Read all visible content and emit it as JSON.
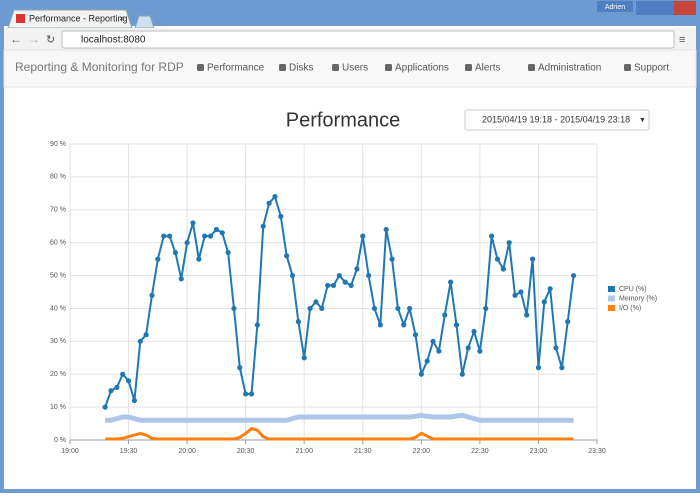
{
  "browser": {
    "tab_title": "Performance - Reporting",
    "user": "Adrien",
    "address": "localhost:8080"
  },
  "navbar": {
    "brand": "Reporting & Monitoring for RDP",
    "items": [
      "Performance",
      "Disks",
      "Users",
      "Applications",
      "Alerts",
      "Administration",
      "Support"
    ]
  },
  "date_range": "2015/04/19 19:18 - 2015/04/19 23:18",
  "chart_data": {
    "type": "line",
    "title": "Performance",
    "x": [
      "19:18",
      "19:21",
      "19:24",
      "19:27",
      "19:30",
      "19:33",
      "19:36",
      "19:39",
      "19:42",
      "19:45",
      "19:48",
      "19:51",
      "19:54",
      "19:57",
      "20:00",
      "20:03",
      "20:06",
      "20:09",
      "20:12",
      "20:15",
      "20:18",
      "20:21",
      "20:24",
      "20:27",
      "20:30",
      "20:33",
      "20:36",
      "20:39",
      "20:42",
      "20:45",
      "20:48",
      "20:51",
      "20:54",
      "20:57",
      "21:00",
      "21:03",
      "21:06",
      "21:09",
      "21:12",
      "21:15",
      "21:18",
      "21:21",
      "21:24",
      "21:27",
      "21:30",
      "21:33",
      "21:36",
      "21:39",
      "21:42",
      "21:45",
      "21:48",
      "21:51",
      "21:54",
      "21:57",
      "22:00",
      "22:03",
      "22:06",
      "22:09",
      "22:12",
      "22:15",
      "22:18",
      "22:21",
      "22:24",
      "22:27",
      "22:30",
      "22:33",
      "22:36",
      "22:39",
      "22:42",
      "22:45",
      "22:48",
      "22:51",
      "22:54",
      "22:57",
      "23:00",
      "23:03",
      "23:06",
      "23:09",
      "23:12",
      "23:15",
      "23:18"
    ],
    "series": [
      {
        "name": "CPU (%)",
        "color": "#1f77b4",
        "values": [
          10,
          15,
          16,
          20,
          18,
          12,
          30,
          32,
          44,
          55,
          62,
          62,
          57,
          49,
          60,
          66,
          55,
          62,
          62,
          64,
          63,
          57,
          40,
          22,
          14,
          14,
          35,
          65,
          72,
          74,
          68,
          56,
          50,
          36,
          25,
          40,
          42,
          40,
          47,
          47,
          50,
          48,
          47,
          52,
          62,
          50,
          40,
          35,
          64,
          55,
          40,
          35,
          40,
          32,
          20,
          24,
          30,
          27,
          38,
          48,
          35,
          20,
          28,
          33,
          27,
          40,
          62,
          55,
          52,
          60,
          44,
          45,
          38,
          55,
          22,
          42,
          46,
          28,
          22,
          36,
          50
        ]
      },
      {
        "name": "Memory (%)",
        "color": "#aec7e8",
        "values": [
          6,
          6,
          6.5,
          7,
          7,
          6.5,
          6,
          6,
          6,
          6,
          6,
          6,
          6,
          6,
          6,
          6,
          6,
          6,
          6,
          6,
          6,
          6,
          6,
          6,
          6,
          6,
          6,
          6,
          6,
          6,
          6,
          6,
          6.5,
          7,
          7,
          7,
          7,
          7,
          7,
          7,
          7,
          7,
          7,
          7,
          7,
          7,
          7,
          7,
          7,
          7,
          7,
          7,
          7,
          7.2,
          7.5,
          7.2,
          7,
          7,
          7,
          7,
          7.3,
          7.5,
          7,
          6.5,
          6,
          6,
          6,
          6,
          6,
          6,
          6,
          6,
          6,
          6,
          6,
          6,
          6,
          6,
          6,
          6,
          6
        ]
      },
      {
        "name": "I/O (%)",
        "color": "#ff7f0e",
        "values": [
          0.3,
          0.3,
          0.3,
          0.5,
          1,
          1.5,
          2,
          1.5,
          0.5,
          0.3,
          0.3,
          0.3,
          0.3,
          0.3,
          0.3,
          0.3,
          0.3,
          0.3,
          0.3,
          0.3,
          0.3,
          0.3,
          0.3,
          0.8,
          2,
          3.5,
          3,
          1,
          0.3,
          0.3,
          0.3,
          0.3,
          0.3,
          0.3,
          0.3,
          0.3,
          0.3,
          0.3,
          0.3,
          0.3,
          0.3,
          0.3,
          0.3,
          0.3,
          0.3,
          0.3,
          0.3,
          0.3,
          0.3,
          0.3,
          0.3,
          0.3,
          0.3,
          0.8,
          2,
          1.2,
          0.3,
          0.3,
          0.3,
          0.3,
          0.3,
          0.3,
          0.3,
          0.3,
          0.3,
          0.3,
          0.3,
          0.3,
          0.3,
          0.3,
          0.3,
          0.3,
          0.3,
          0.3,
          0.3,
          0.3,
          0.3,
          0.3,
          0.3,
          0.3,
          0.3
        ]
      }
    ],
    "xlim": [
      "19:00",
      "23:30"
    ],
    "xticks": [
      "19:00",
      "19:30",
      "20:00",
      "20:30",
      "21:00",
      "21:30",
      "22:00",
      "22:30",
      "23:00",
      "23:30"
    ],
    "ylim": [
      0,
      90
    ],
    "yticks": [
      {
        "value": 0,
        "label": "0 %"
      },
      {
        "value": 10,
        "label": "10 %"
      },
      {
        "value": 20,
        "label": "20 %"
      },
      {
        "value": 30,
        "label": "30 %"
      },
      {
        "value": 40,
        "label": "40 %"
      },
      {
        "value": 50,
        "label": "50 %"
      },
      {
        "value": 60,
        "label": "60 %"
      },
      {
        "value": 70,
        "label": "70 %"
      },
      {
        "value": 80,
        "label": "80 %"
      },
      {
        "value": 90,
        "label": "90 %"
      }
    ],
    "grid": true,
    "legend": "right"
  }
}
